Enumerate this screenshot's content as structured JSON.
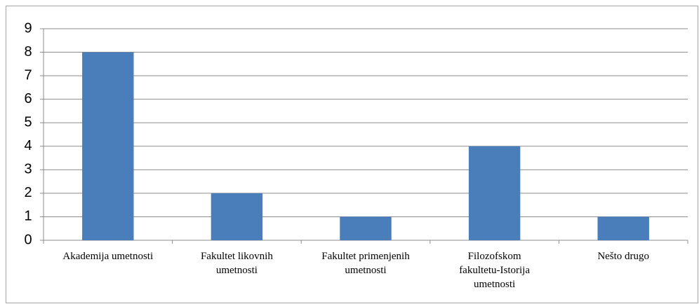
{
  "chart_data": {
    "type": "bar",
    "categories": [
      "Akademija umetnosti",
      "Fakultet likovnih umetnosti",
      "Fakultet primenjenih umetnosti",
      "Filozofskom fakultetu-Istorija umetnosti",
      "Nešto drugo"
    ],
    "values": [
      8,
      2,
      1,
      4,
      1
    ],
    "color": "#4a7ebb",
    "ylim": [
      0,
      9
    ],
    "yticks": [
      0,
      1,
      2,
      3,
      4,
      5,
      6,
      7,
      8,
      9
    ],
    "grid": true
  }
}
